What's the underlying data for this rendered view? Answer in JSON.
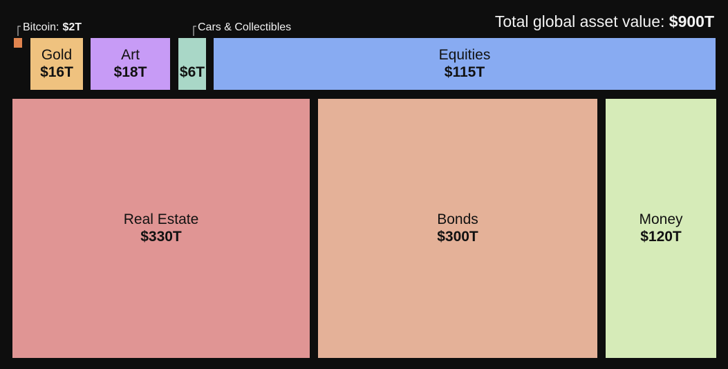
{
  "chart_data": {
    "type": "treemap",
    "title": "Total global asset value:",
    "total": 900,
    "total_label": "$900T",
    "categories": [
      "Bitcoin:",
      "Gold",
      "Art",
      "Cars & Collectibles",
      "Equities",
      "Real Estate",
      "Bonds",
      "Money"
    ],
    "values": [
      2,
      16,
      18,
      6,
      115,
      330,
      300,
      120
    ],
    "value_labels": [
      "$2T",
      "$16T",
      "$18T",
      "$6T",
      "$115T",
      "$330T",
      "$300T",
      "$120T"
    ],
    "colors": [
      "#e0844f",
      "#efc27f",
      "#c79bf6",
      "#a9d7c7",
      "#88abf2",
      "#e09594",
      "#e4b198",
      "#d6ebb8"
    ]
  }
}
